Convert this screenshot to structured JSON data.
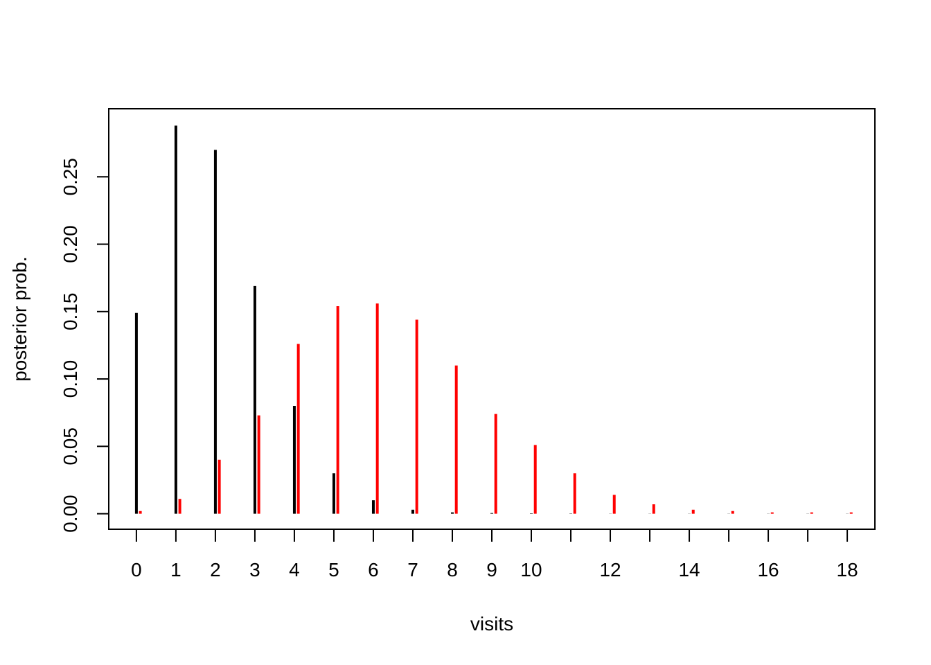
{
  "chart_data": {
    "type": "bar",
    "title": "",
    "xlabel": "visits",
    "ylabel": "posterior prob.",
    "xlim": [
      -0.7,
      18.7
    ],
    "ylim": [
      -0.0115,
      0.3005
    ],
    "x_ticks": [
      0,
      1,
      2,
      3,
      4,
      5,
      6,
      7,
      8,
      9,
      10,
      11,
      12,
      13,
      14,
      15,
      16,
      17,
      18
    ],
    "x_tick_labels": [
      "0",
      "1",
      "2",
      "3",
      "4",
      "5",
      "6",
      "7",
      "8",
      "9",
      "10",
      "",
      "12",
      "",
      "14",
      "",
      "16",
      "",
      "18"
    ],
    "y_ticks": [
      0,
      0.05,
      0.1,
      0.15,
      0.2,
      0.25
    ],
    "y_tick_labels": [
      "0.00",
      "0.05",
      "0.10",
      "0.15",
      "0.20",
      "0.25"
    ],
    "grid": false,
    "series": [
      {
        "color": "#000000",
        "offset": 0,
        "x": [
          0,
          1,
          2,
          3,
          4,
          5,
          6,
          7,
          8,
          9,
          10,
          11,
          12,
          13,
          14,
          15,
          16,
          17,
          18
        ],
        "values": [
          0.149,
          0.288,
          0.27,
          0.169,
          0.08,
          0.03,
          0.01,
          0.003,
          0.001,
          0.0005,
          0.0003,
          0.0002,
          0.0001,
          0.0001,
          0.0001,
          0.0001,
          0.0001,
          0.0001,
          0.0001
        ]
      },
      {
        "color": "#ff0000",
        "offset": 0.1,
        "x": [
          0,
          1,
          2,
          3,
          4,
          5,
          6,
          7,
          8,
          9,
          10,
          11,
          12,
          13,
          14,
          15,
          16,
          17,
          18
        ],
        "values": [
          0.002,
          0.011,
          0.04,
          0.073,
          0.126,
          0.154,
          0.156,
          0.144,
          0.11,
          0.074,
          0.051,
          0.03,
          0.014,
          0.007,
          0.003,
          0.002,
          0.001,
          0.001,
          0.001
        ]
      }
    ]
  }
}
